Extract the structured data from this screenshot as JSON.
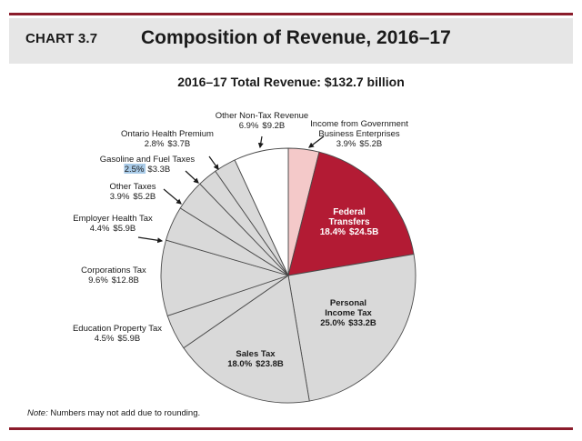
{
  "header": {
    "chart_number": "CHART 3.7",
    "title": "Composition of Revenue, 2016–17"
  },
  "subtitle": "2016–17 Total Revenue: $132.7 billion",
  "note_prefix": "Note:",
  "note_text": " Numbers may not add due to rounding.",
  "colors": {
    "accent_rule": "#8b1c2b",
    "federal": "#b31b34",
    "income_gov": "#f4c9c9",
    "non_tax": "#ffffff",
    "grey_slice": "#d9d9d9",
    "header_bg": "#e6e6e6",
    "highlight": "#a9cbe8"
  },
  "chart_data": {
    "type": "pie",
    "title": "Composition of Revenue, 2016–17",
    "subtitle": "2016–17 Total Revenue: $132.7 billion",
    "total_billion": 132.7,
    "slices": [
      {
        "name": "Income from Government Business Enterprises",
        "label_lines": [
          "Income from Government",
          "Business Enterprises"
        ],
        "percent": 3.9,
        "percent_label": "3.9%",
        "value_label": "$5.2B",
        "value": 5.2,
        "color": "#f4c9c9"
      },
      {
        "name": "Federal Transfers",
        "label_lines": [
          "Federal",
          "Transfers"
        ],
        "percent": 18.4,
        "percent_label": "18.4%",
        "value_label": "$24.5B",
        "value": 24.5,
        "color": "#b31b34"
      },
      {
        "name": "Personal Income Tax",
        "label_lines": [
          "Personal",
          "Income Tax"
        ],
        "percent": 25.0,
        "percent_label": "25.0%",
        "value_label": "$33.2B",
        "value": 33.2,
        "color": "#d9d9d9"
      },
      {
        "name": "Sales Tax",
        "label_lines": [
          "Sales Tax"
        ],
        "percent": 18.0,
        "percent_label": "18.0%",
        "value_label": "$23.8B",
        "value": 23.8,
        "color": "#d9d9d9"
      },
      {
        "name": "Education Property Tax",
        "label_lines": [
          "Education Property Tax"
        ],
        "percent": 4.5,
        "percent_label": "4.5%",
        "value_label": "$5.9B",
        "value": 5.9,
        "color": "#d9d9d9"
      },
      {
        "name": "Corporations Tax",
        "label_lines": [
          "Corporations Tax"
        ],
        "percent": 9.6,
        "percent_label": "9.6%",
        "value_label": "$12.8B",
        "value": 12.8,
        "color": "#d9d9d9"
      },
      {
        "name": "Employer Health Tax",
        "label_lines": [
          "Employer Health Tax"
        ],
        "percent": 4.4,
        "percent_label": "4.4%",
        "value_label": "$5.9B",
        "value": 5.9,
        "color": "#d9d9d9"
      },
      {
        "name": "Other Taxes",
        "label_lines": [
          "Other Taxes"
        ],
        "percent": 3.9,
        "percent_label": "3.9%",
        "value_label": "$5.2B",
        "value": 5.2,
        "color": "#d9d9d9"
      },
      {
        "name": "Gasoline and Fuel Taxes",
        "label_lines": [
          "Gasoline and Fuel Taxes"
        ],
        "percent": 2.5,
        "percent_label": "2.5%",
        "value_label": "$3.3B",
        "value": 3.3,
        "color": "#d9d9d9",
        "percent_highlighted": true
      },
      {
        "name": "Ontario Health Premium",
        "label_lines": [
          "Ontario Health Premium"
        ],
        "percent": 2.8,
        "percent_label": "2.8%",
        "value_label": "$3.7B",
        "value": 3.7,
        "color": "#d9d9d9"
      },
      {
        "name": "Other Non-Tax Revenue",
        "label_lines": [
          "Other Non-Tax Revenue"
        ],
        "percent": 6.9,
        "percent_label": "6.9%",
        "value_label": "$9.2B",
        "value": 9.2,
        "color": "#ffffff"
      }
    ]
  }
}
